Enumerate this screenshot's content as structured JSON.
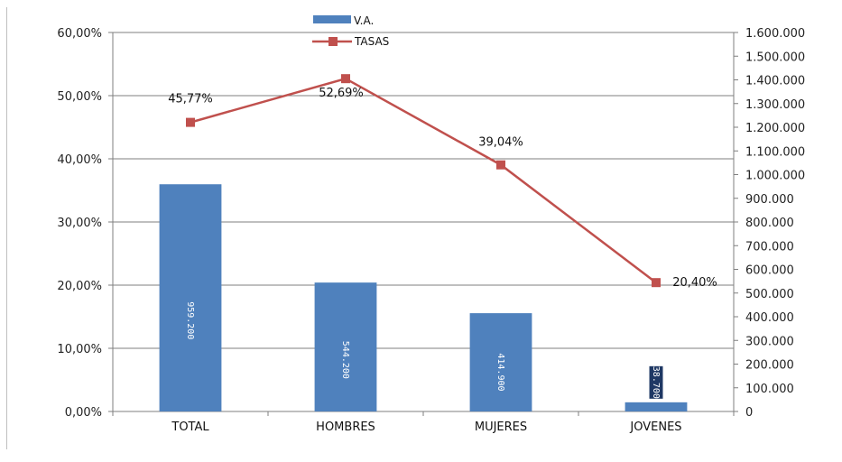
{
  "chart_data": {
    "type": "bar",
    "title": "",
    "xlabel": "",
    "ylabel_left": "",
    "ylabel_right": "",
    "categories": [
      "TOTAL",
      "HOMBRES",
      "MUJERES",
      "JOVENES"
    ],
    "series": [
      {
        "name": "V.A.",
        "type": "bar",
        "axis": "right",
        "color": "#4F81BD",
        "values": [
          959200,
          544200,
          414900,
          38700
        ],
        "data_labels": [
          "959.200",
          "544.200",
          "414.900",
          "38.700"
        ]
      },
      {
        "name": "TASAS",
        "type": "line",
        "axis": "left",
        "color": "#C0504D",
        "marker": "square",
        "values": [
          45.77,
          52.69,
          39.04,
          20.4
        ],
        "data_labels": [
          "45,77%",
          "52,69%",
          "39,04%",
          "20,40%"
        ]
      }
    ],
    "y_left": {
      "lim": [
        0,
        60
      ],
      "ticks": [
        "0,00%",
        "10,00%",
        "20,00%",
        "30,00%",
        "40,00%",
        "50,00%",
        "60,00%"
      ]
    },
    "y_right": {
      "lim": [
        0,
        1600000
      ],
      "ticks": [
        "0",
        "100.000",
        "200.000",
        "300.000",
        "400.000",
        "500.000",
        "600.000",
        "700.000",
        "800.000",
        "900.000",
        "1.000.000",
        "1.100.000",
        "1.200.000",
        "1.300.000",
        "1.400.000",
        "1.500.000",
        "1.600.000"
      ]
    },
    "grid": true,
    "legend_position": "top-center",
    "colors": {
      "bar_label_box": "#1F3864",
      "grid": "#7f7f7f"
    }
  }
}
